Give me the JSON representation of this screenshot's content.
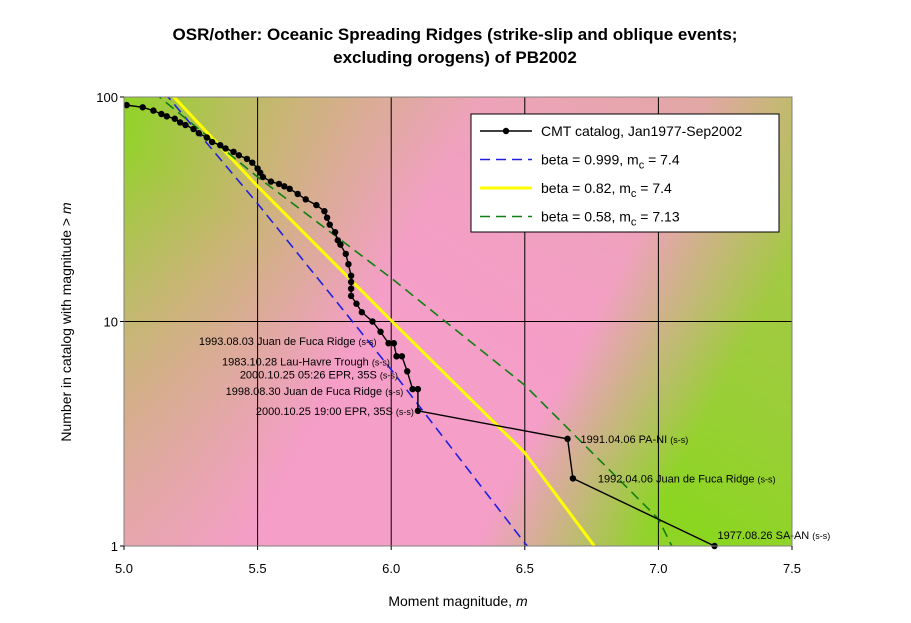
{
  "chart_data": {
    "type": "line",
    "title_line1": "OSR/other: Oceanic Spreading Ridges (strike-slip and oblique events;",
    "title_line2": "excluding orogens) of PB2002",
    "xlabel_text": "Moment magnitude, ",
    "xlabel_var": "m",
    "ylabel_text": "Number in catalog with magnitude  >  ",
    "ylabel_var": "m",
    "xlim": [
      5.0,
      7.5
    ],
    "ylim": [
      1,
      100
    ],
    "y_scale": "log",
    "grid": true,
    "legend_position": "top-right",
    "x_ticks": [
      "5.0",
      "5.5",
      "6.0",
      "6.5",
      "7.0",
      "7.5"
    ],
    "y_ticks": [
      "1",
      "10",
      "100"
    ],
    "series": [
      {
        "name": "CMT catalog, Jan1977-Sep2002",
        "style": "line-markers",
        "color": "#000000",
        "x": [
          5.01,
          5.07,
          5.11,
          5.14,
          5.16,
          5.19,
          5.21,
          5.23,
          5.26,
          5.28,
          5.31,
          5.33,
          5.36,
          5.38,
          5.41,
          5.43,
          5.46,
          5.48,
          5.5,
          5.51,
          5.52,
          5.55,
          5.58,
          5.6,
          5.62,
          5.65,
          5.68,
          5.72,
          5.75,
          5.76,
          5.77,
          5.79,
          5.8,
          5.81,
          5.83,
          5.84,
          5.85,
          5.85,
          5.85,
          5.85,
          5.87,
          5.89,
          5.93,
          5.96,
          5.99,
          6.01,
          6.02,
          6.02,
          6.04,
          6.06,
          6.08,
          6.1,
          6.1,
          6.66,
          6.68,
          7.21
        ],
        "y": [
          92,
          90,
          87,
          84,
          82,
          80,
          77,
          75,
          72,
          69,
          66,
          63,
          61,
          59,
          57,
          55,
          53,
          51,
          48,
          46,
          44,
          42,
          41,
          40,
          39,
          37,
          35,
          33,
          31,
          29,
          27,
          25,
          23,
          22,
          20,
          18,
          16,
          15,
          14,
          13,
          12,
          11,
          10,
          9,
          8,
          8,
          7,
          7,
          7,
          6,
          5,
          5,
          4,
          3,
          2,
          1
        ]
      },
      {
        "name": "beta = 0.999, m",
        "name_sub": "c",
        "name_suffix": " = 7.4",
        "style": "dashed",
        "color": "#2020e0",
        "x": [
          5.15,
          5.5,
          6.0,
          6.5,
          6.51
        ],
        "y": [
          105,
          33.5,
          6.1,
          1.03,
          1.0
        ]
      },
      {
        "name": "beta = 0.82, m",
        "name_sub": "c",
        "name_suffix": " = 7.4",
        "style": "solid",
        "color": "#ffff00",
        "x": [
          5.17,
          5.5,
          6.0,
          6.5,
          6.76
        ],
        "y": [
          105,
          40,
          10.1,
          2.6,
          1.0
        ]
      },
      {
        "name": "beta = 0.58, m",
        "name_sub": "c",
        "name_suffix": " = 7.13",
        "style": "dashed",
        "color": "#108010",
        "x": [
          5.11,
          5.5,
          6.0,
          6.5,
          7.0,
          7.05
        ],
        "y": [
          105,
          44,
          15.6,
          5.2,
          1.32,
          1.0
        ]
      }
    ],
    "annotations": [
      {
        "text": "1993.08.03 Juan de Fuca Ridge ",
        "small": "(s-s)",
        "anchor_x": 5.96,
        "anchor_y": 9
      },
      {
        "text": "1983.10.28 Lau-Havre Trough ",
        "small": "(s-s)",
        "anchor_x": 6.01,
        "anchor_y": 7
      },
      {
        "text": "2000.10.25 05:26 EPR, 35S ",
        "small": "(s-s)",
        "anchor_x": 6.04,
        "anchor_y": 6
      },
      {
        "text": "1998.08.30 Juan de Fuca Ridge ",
        "small": "(s-s)",
        "anchor_x": 6.06,
        "anchor_y": 5
      },
      {
        "text": "2000.10.25 19:00 EPR, 35S ",
        "small": "(s-s)",
        "anchor_x": 6.1,
        "anchor_y": 4
      },
      {
        "text": "1991.04.06 PA-NI ",
        "small": "(s-s)",
        "anchor_x": 6.66,
        "anchor_y": 3
      },
      {
        "text": "1992.04.06 Juan de Fuca Ridge ",
        "small": "(s-s)",
        "anchor_x": 6.68,
        "anchor_y": 2
      },
      {
        "text": "1977.08.26 SA-AN ",
        "small": "(s-s)",
        "anchor_x": 7.21,
        "anchor_y": 1
      }
    ]
  },
  "colors": {
    "bg_green": "#8bd620",
    "bg_pink": "#f59ec8",
    "bg_tan": "#c7b070",
    "gridline": "#000000"
  }
}
